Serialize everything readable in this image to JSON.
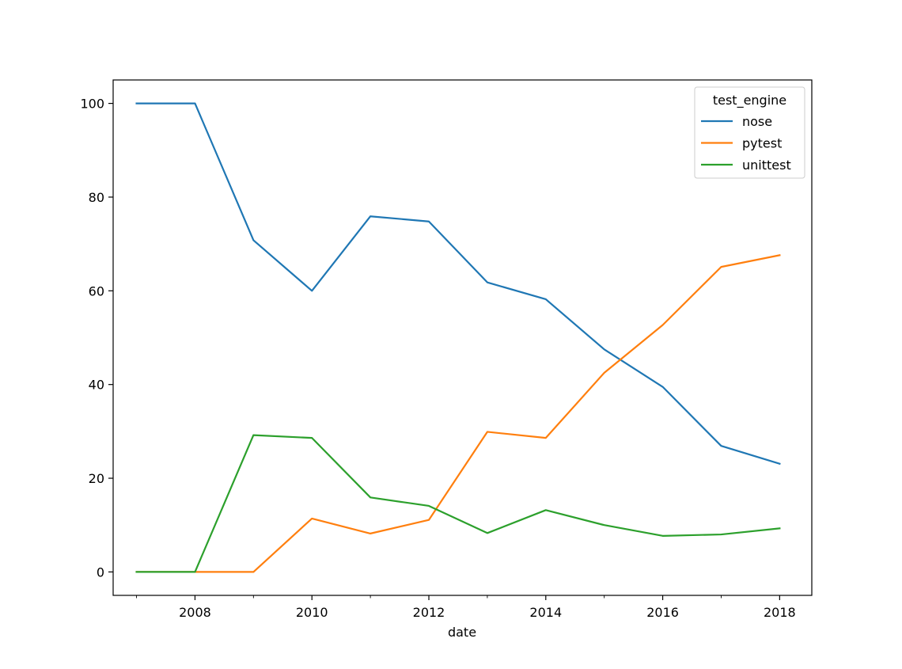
{
  "chart_data": {
    "type": "line",
    "title": "",
    "xlabel": "date",
    "ylabel": "",
    "x": [
      2007,
      2008,
      2009,
      2010,
      2011,
      2012,
      2013,
      2014,
      2015,
      2016,
      2017,
      2018
    ],
    "xlim": [
      2006.6,
      2018.55
    ],
    "ylim": [
      -5,
      105
    ],
    "xticks_major": [
      2008,
      2010,
      2012,
      2014,
      2016,
      2018
    ],
    "xticks_minor": [
      2007,
      2009,
      2011,
      2013,
      2015,
      2017
    ],
    "xtick_labels": [
      "2008",
      "2010",
      "2012",
      "2014",
      "2016",
      "2018"
    ],
    "yticks": [
      0,
      20,
      40,
      60,
      80,
      100
    ],
    "ytick_labels": [
      "0",
      "20",
      "40",
      "60",
      "80",
      "100"
    ],
    "grid": false,
    "legend": {
      "title": "test_engine",
      "placement": "top-right"
    },
    "series": [
      {
        "name": "nose",
        "color": "#1f77b4",
        "values": [
          100,
          100,
          70.8,
          60,
          75.9,
          74.8,
          61.8,
          58.2,
          47.5,
          39.5,
          26.9,
          23.1
        ]
      },
      {
        "name": "pytest",
        "color": "#ff7f0e",
        "values": [
          0,
          0,
          0,
          11.4,
          8.2,
          11.1,
          29.9,
          28.6,
          42.5,
          52.7,
          65.1,
          67.6
        ]
      },
      {
        "name": "unittest",
        "color": "#2ca02c",
        "values": [
          0,
          0,
          29.2,
          28.6,
          15.9,
          14.1,
          8.3,
          13.2,
          10.0,
          7.7,
          8.0,
          9.3
        ]
      }
    ]
  }
}
